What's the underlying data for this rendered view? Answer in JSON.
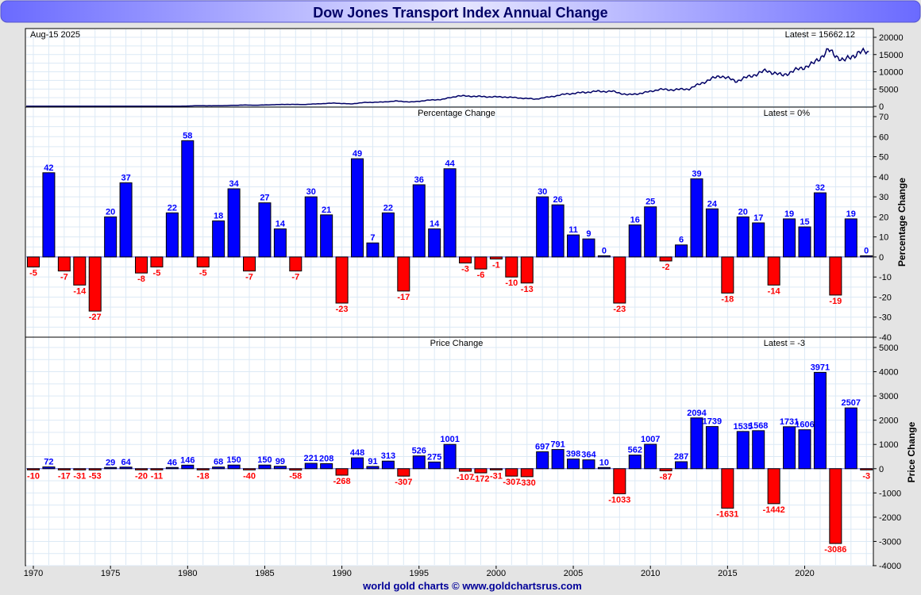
{
  "title": "Dow Jones Transport Index Annual Change",
  "footer": "world gold charts © www.goldchartsrus.com",
  "colors": {
    "positive": "#0000ff",
    "negative": "#ff0000",
    "line": "#000066",
    "grid": "#dce9f5"
  },
  "chart_data": [
    {
      "type": "line",
      "title": "Dow Jones Transport Index",
      "date_label": "Aug-15  2025",
      "latest_label": "Latest = 15662.12",
      "latest": 15662.12,
      "ylim": [
        0,
        20000
      ],
      "yticks": [
        "20000",
        "15000",
        "10000",
        "5000",
        "0"
      ],
      "ytick_values": [
        20000,
        15000,
        10000,
        5000,
        0
      ]
    },
    {
      "type": "bar",
      "title": "Percentage Change",
      "latest_label": "Latest = 0%",
      "ylabel": "Percentage Change",
      "ylim": [
        -40,
        70
      ],
      "yticks": [
        "70",
        "60",
        "50",
        "40",
        "30",
        "20",
        "10",
        "0",
        "-10",
        "-20",
        "-30",
        "-40"
      ],
      "ytick_values": [
        70,
        60,
        50,
        40,
        30,
        20,
        10,
        0,
        -10,
        -20,
        -30,
        -40
      ],
      "start_year": 1970,
      "values": [
        -5,
        42,
        -7,
        -14,
        -27,
        20,
        37,
        -8,
        -5,
        22,
        58,
        -5,
        18,
        34,
        -7,
        27,
        14,
        -7,
        30,
        21,
        -23,
        49,
        7,
        22,
        -17,
        36,
        14,
        44,
        -3,
        -6,
        -1,
        -10,
        -13,
        30,
        26,
        11,
        9,
        0,
        -23,
        16,
        25,
        -2,
        6,
        39,
        24,
        -18,
        20,
        17,
        -14,
        19,
        15,
        32,
        -19,
        19,
        0
      ]
    },
    {
      "type": "bar",
      "title": "Price Change",
      "latest_label": "Latest = -3",
      "ylabel": "Price Change",
      "ylim": [
        -4000,
        5000
      ],
      "yticks": [
        "5000",
        "4000",
        "3000",
        "2000",
        "1000",
        "0",
        "-1000",
        "-2000",
        "-3000",
        "-4000"
      ],
      "ytick_values": [
        5000,
        4000,
        3000,
        2000,
        1000,
        0,
        -1000,
        -2000,
        -3000,
        -4000
      ],
      "start_year": 1970,
      "values": [
        -10,
        72,
        -17,
        -31,
        -53,
        29,
        64,
        -20,
        -11,
        46,
        146,
        -18,
        68,
        150,
        -40,
        150,
        99,
        -58,
        221,
        208,
        -268,
        448,
        91,
        313,
        -307,
        526,
        275,
        1001,
        -107,
        -172,
        -31,
        -307,
        -330,
        697,
        791,
        398,
        364,
        10,
        -1033,
        562,
        1007,
        -87,
        287,
        2094,
        1739,
        -1631,
        1535,
        1568,
        -1442,
        1731,
        1606,
        3971,
        -3086,
        2507,
        -3
      ]
    }
  ],
  "xaxis": {
    "labels": [
      "1970",
      "1975",
      "1980",
      "1985",
      "1990",
      "1995",
      "2000",
      "2005",
      "2010",
      "2015",
      "2020"
    ],
    "label_years": [
      1970,
      1975,
      1980,
      1985,
      1990,
      1995,
      2000,
      2005,
      2010,
      2015,
      2020
    ]
  }
}
